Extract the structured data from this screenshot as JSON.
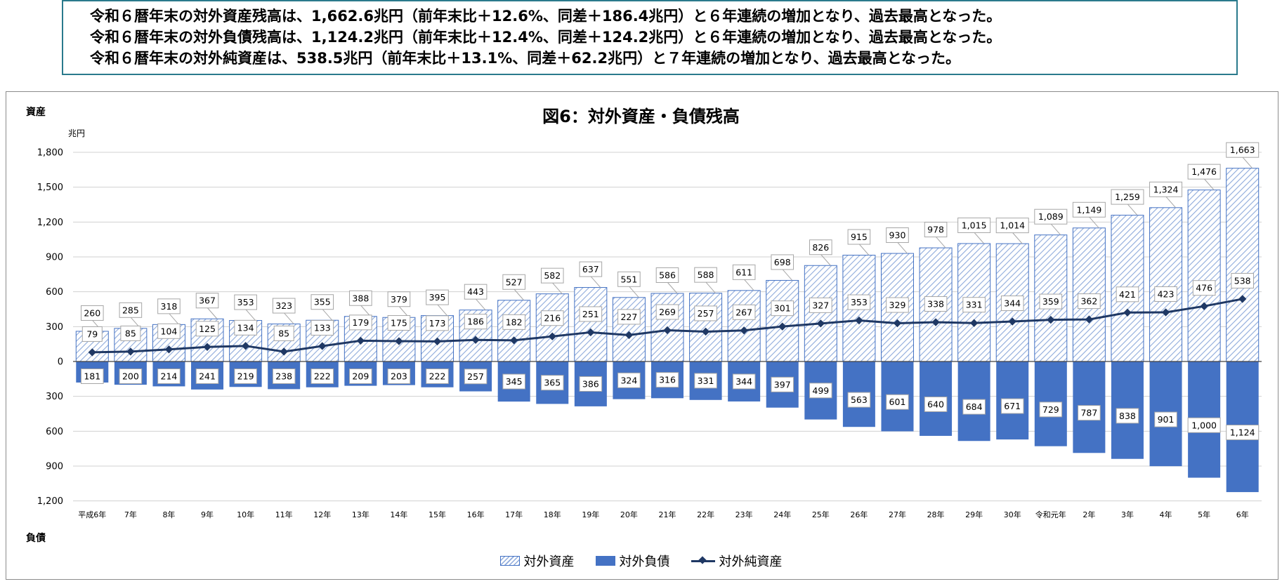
{
  "summary": {
    "lines": [
      "令和６暦年末の対外資産残高は、1,662.6兆円（前年末比＋12.6%、同差＋186.4兆円）と６年連続の増加となり、過去最高となった。",
      "令和６暦年末の対外負債残高は、1,124.2兆円（前年末比＋12.4%、同差＋124.2兆円）と６年連続の増加となり、過去最高となった。",
      "令和６暦年末の対外純資産は、538.5兆円（前年末比＋13.1%、同差＋62.2兆円）と７年連続の増加となり、過去最高となった。"
    ]
  },
  "labels": {
    "assets_side": "資産",
    "liabilities_side": "負債",
    "unit": "兆円"
  },
  "colors": {
    "assets_hatch": "#8eaadb",
    "assets_border": "#4472c4",
    "liabilities": "#4472c4",
    "net_line": "#1f3864",
    "grid": "#d0d0d0"
  },
  "chart_data": {
    "type": "bar",
    "title": "図6：対外資産・負債残高",
    "ylabel": "兆円",
    "ylim_positive": [
      0,
      1800
    ],
    "ylim_negative": [
      0,
      1200
    ],
    "yticks": [
      1800,
      1500,
      1200,
      900,
      600,
      300,
      0,
      -300,
      -600,
      -900,
      -1200
    ],
    "ytick_labels": [
      "1,800",
      "1,500",
      "1,200",
      "900",
      "600",
      "300",
      "0",
      "300",
      "600",
      "900",
      "1,200"
    ],
    "categories": [
      "平成6年",
      "7年",
      "8年",
      "9年",
      "10年",
      "11年",
      "12年",
      "13年",
      "14年",
      "15年",
      "16年",
      "17年",
      "18年",
      "19年",
      "20年",
      "21年",
      "22年",
      "23年",
      "24年",
      "25年",
      "26年",
      "27年",
      "28年",
      "29年",
      "30年",
      "令和元年",
      "2年",
      "3年",
      "4年",
      "5年",
      "6年"
    ],
    "series": [
      {
        "name": "対外資産",
        "kind": "bar-hatched",
        "values": [
          260,
          285,
          318,
          367,
          353,
          323,
          355,
          388,
          379,
          395,
          443,
          527,
          582,
          637,
          551,
          586,
          588,
          611,
          698,
          826,
          915,
          930,
          978,
          1015,
          1014,
          1089,
          1149,
          1259,
          1324,
          1476,
          1663
        ],
        "labels": [
          "260",
          "285",
          "318",
          "367",
          "353",
          "323",
          "355",
          "388",
          "379",
          "395",
          "443",
          "527",
          "582",
          "637",
          "551",
          "586",
          "588",
          "611",
          "698",
          "826",
          "915",
          "930",
          "978",
          "1,015",
          "1,014",
          "1,089",
          "1,149",
          "1,259",
          "1,324",
          "1,476",
          "1,663"
        ]
      },
      {
        "name": "対外負債",
        "kind": "bar-solid-downward",
        "values": [
          181,
          200,
          214,
          241,
          219,
          238,
          222,
          209,
          203,
          222,
          257,
          345,
          365,
          386,
          324,
          316,
          331,
          344,
          397,
          499,
          563,
          601,
          640,
          684,
          671,
          729,
          787,
          838,
          901,
          1000,
          1124
        ],
        "labels": [
          "181",
          "200",
          "214",
          "241",
          "219",
          "238",
          "222",
          "209",
          "203",
          "222",
          "257",
          "345",
          "365",
          "386",
          "324",
          "316",
          "331",
          "344",
          "397",
          "499",
          "563",
          "601",
          "640",
          "684",
          "671",
          "729",
          "787",
          "838",
          "901",
          "1,000",
          "1,124"
        ]
      },
      {
        "name": "対外純資産",
        "kind": "line",
        "values": [
          79,
          85,
          104,
          125,
          134,
          85,
          133,
          179,
          175,
          173,
          186,
          182,
          216,
          251,
          227,
          269,
          257,
          267,
          301,
          327,
          353,
          329,
          338,
          331,
          344,
          359,
          362,
          421,
          423,
          476,
          538
        ],
        "labels": [
          "79",
          "85",
          "104",
          "125",
          "134",
          "85",
          "133",
          "179",
          "175",
          "173",
          "186",
          "182",
          "216",
          "251",
          "227",
          "269",
          "257",
          "267",
          "301",
          "327",
          "353",
          "329",
          "338",
          "331",
          "344",
          "359",
          "362",
          "421",
          "423",
          "476",
          "538"
        ]
      }
    ],
    "legend": [
      "対外資産",
      "対外負債",
      "対外純資産"
    ],
    "legend_position": "bottom-center"
  }
}
